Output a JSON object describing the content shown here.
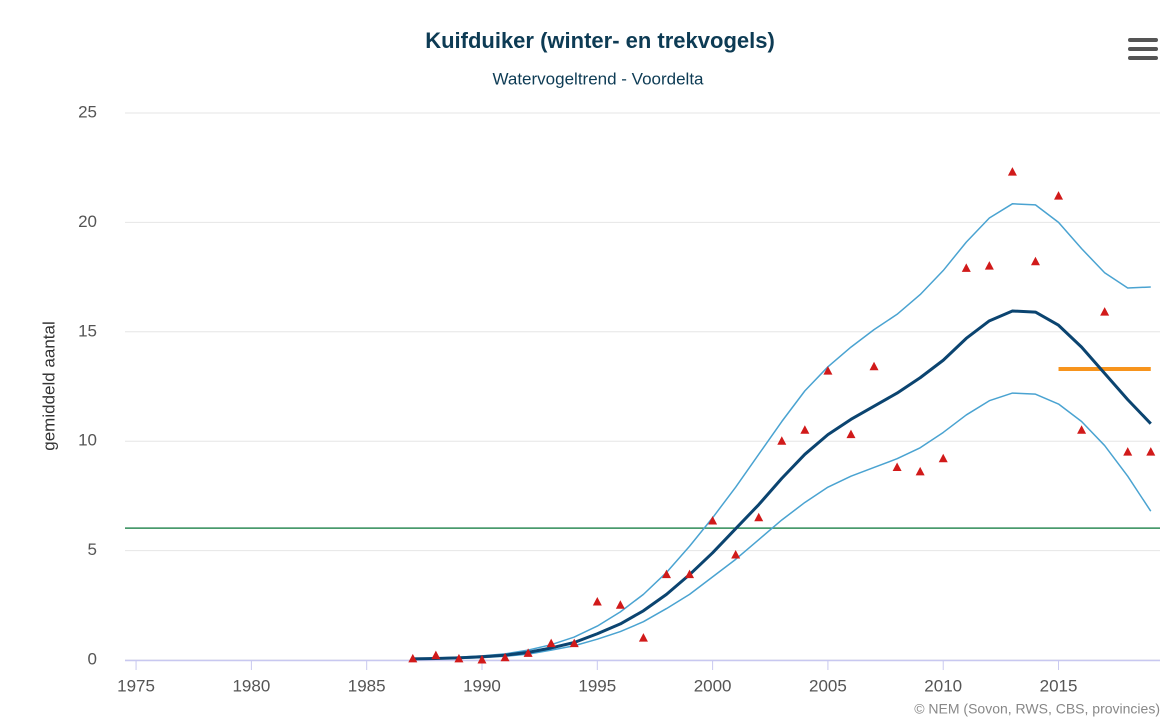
{
  "chart_data": {
    "type": "line",
    "title": "Kuifduiker (winter- en trekvogels)",
    "subtitle": "Watervogeltrend - Voordelta",
    "y_label": "gemiddeld aantal",
    "credits": "© NEM (Sovon, RWS, CBS, provincies)",
    "x": [
      1987,
      1988,
      1989,
      1990,
      1991,
      1992,
      1993,
      1994,
      1995,
      1996,
      1997,
      1998,
      1999,
      2000,
      2001,
      2002,
      2003,
      2004,
      2005,
      2006,
      2007,
      2008,
      2009,
      2010,
      2011,
      2012,
      2013,
      2014,
      2015,
      2016,
      2017,
      2018,
      2019
    ],
    "series": [
      {
        "kind": "line",
        "color": "#4aa3d1",
        "width": 1.5,
        "values": [
          0.06,
          0.09,
          0.13,
          0.19,
          0.28,
          0.45,
          0.7,
          1.05,
          1.55,
          2.2,
          3.0,
          4.0,
          5.2,
          6.5,
          7.9,
          9.4,
          10.9,
          12.3,
          13.4,
          14.3,
          15.1,
          15.8,
          16.7,
          17.8,
          19.1,
          20.2,
          20.85,
          20.8,
          20.0,
          18.8,
          17.7,
          17.0,
          17.05
        ]
      },
      {
        "kind": "line",
        "color": "#4aa3d1",
        "width": 1.5,
        "values": [
          0.04,
          0.05,
          0.07,
          0.11,
          0.17,
          0.27,
          0.45,
          0.65,
          0.95,
          1.3,
          1.75,
          2.35,
          3.0,
          3.8,
          4.6,
          5.5,
          6.4,
          7.2,
          7.9,
          8.4,
          8.8,
          9.2,
          9.7,
          10.4,
          11.2,
          11.85,
          12.2,
          12.15,
          11.7,
          10.9,
          9.8,
          8.4,
          6.8
        ]
      },
      {
        "kind": "line",
        "color": "#0b4470",
        "width": 3,
        "values": [
          0.05,
          0.07,
          0.1,
          0.15,
          0.22,
          0.35,
          0.55,
          0.8,
          1.2,
          1.65,
          2.25,
          3.0,
          3.9,
          4.9,
          6.0,
          7.1,
          8.3,
          9.4,
          10.3,
          11.0,
          11.6,
          12.2,
          12.9,
          13.7,
          14.7,
          15.5,
          15.95,
          15.9,
          15.3,
          14.3,
          13.1,
          11.9,
          10.8
        ]
      },
      {
        "kind": "markers",
        "color": "#d11a1a",
        "values": [
          0.05,
          0.2,
          0.05,
          0.0,
          0.1,
          0.3,
          0.75,
          0.75,
          2.65,
          2.5,
          1.0,
          3.9,
          3.9,
          6.35,
          4.8,
          6.5,
          10.0,
          10.5,
          13.2,
          10.3,
          13.4,
          8.8,
          8.6,
          9.2,
          17.9,
          18.0,
          22.3,
          18.2,
          21.2,
          10.5,
          15.9,
          9.5,
          9.5
        ]
      }
    ],
    "reference_lines": [
      {
        "value": 6.03,
        "color": "#2e8b57",
        "width": 1.5
      },
      {
        "value": 13.3,
        "color": "#f7941d",
        "width": 4,
        "x": [
          2015,
          2019
        ]
      }
    ],
    "xlim": [
      1974.52,
      2019.4
    ],
    "xticks": [
      1975,
      1980,
      1985,
      1990,
      1995,
      2000,
      2005,
      2010,
      2015
    ],
    "ylim": [
      0,
      25
    ],
    "yticks": [
      0,
      5,
      10,
      15,
      20,
      25
    ],
    "grid": true
  }
}
